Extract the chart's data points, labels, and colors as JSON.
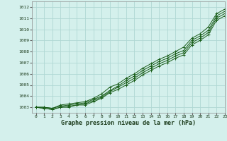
{
  "title": "Graphe pression niveau de la mer (hPa)",
  "bg_color": "#d4f0ec",
  "grid_color": "#b0d8d4",
  "line_color": "#1a5e1a",
  "xlim": [
    -0.5,
    23
  ],
  "ylim": [
    1002.5,
    1012.5
  ],
  "xticks": [
    0,
    1,
    2,
    3,
    4,
    5,
    6,
    7,
    8,
    9,
    10,
    11,
    12,
    13,
    14,
    15,
    16,
    17,
    18,
    19,
    20,
    21,
    22,
    23
  ],
  "yticks": [
    1003,
    1004,
    1005,
    1006,
    1007,
    1008,
    1009,
    1010,
    1011,
    1012
  ],
  "series": [
    [
      1003.0,
      1003.0,
      1002.9,
      1003.2,
      1003.3,
      1003.4,
      1003.5,
      1003.8,
      1004.2,
      1004.8,
      1005.1,
      1005.6,
      1006.0,
      1006.5,
      1006.9,
      1007.3,
      1007.6,
      1008.0,
      1008.4,
      1009.2,
      1009.6,
      1010.2,
      1011.4,
      1011.8
    ],
    [
      1003.0,
      1003.0,
      1002.9,
      1003.1,
      1003.2,
      1003.3,
      1003.4,
      1003.7,
      1004.0,
      1004.5,
      1004.9,
      1005.4,
      1005.8,
      1006.3,
      1006.7,
      1007.1,
      1007.4,
      1007.8,
      1008.1,
      1009.0,
      1009.4,
      1009.9,
      1011.2,
      1011.6
    ],
    [
      1003.0,
      1002.9,
      1002.8,
      1003.0,
      1003.1,
      1003.2,
      1003.3,
      1003.6,
      1003.9,
      1004.4,
      1004.8,
      1005.2,
      1005.6,
      1006.1,
      1006.5,
      1006.9,
      1007.2,
      1007.6,
      1007.9,
      1008.8,
      1009.2,
      1009.7,
      1011.0,
      1011.4
    ],
    [
      1003.0,
      1002.9,
      1002.8,
      1003.0,
      1003.0,
      1003.2,
      1003.2,
      1003.5,
      1003.8,
      1004.3,
      1004.6,
      1005.0,
      1005.4,
      1005.9,
      1006.3,
      1006.7,
      1007.0,
      1007.4,
      1007.7,
      1008.6,
      1009.0,
      1009.5,
      1010.8,
      1011.2
    ]
  ]
}
